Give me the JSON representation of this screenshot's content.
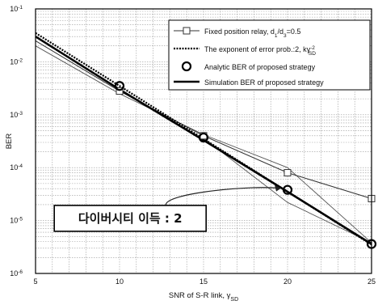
{
  "chart_data": {
    "type": "line",
    "title": "",
    "xlabel": "SNR of S-R link, γSD",
    "ylabel": "BER",
    "x_scale": "linear",
    "y_scale": "log",
    "xlim": [
      5,
      25
    ],
    "ylim": [
      1e-06,
      0.1
    ],
    "grid": true,
    "legend_position": "top-right",
    "x_ticks": [
      5,
      10,
      15,
      20,
      25
    ],
    "y_ticks": [
      {
        "value": 0.1,
        "base": "10",
        "exp": "-1"
      },
      {
        "value": 0.01,
        "base": "10",
        "exp": "-2"
      },
      {
        "value": 0.001,
        "base": "10",
        "exp": "-3"
      },
      {
        "value": 0.0001,
        "base": "10",
        "exp": "-4"
      },
      {
        "value": 1e-05,
        "base": "10",
        "exp": "-5"
      },
      {
        "value": 1e-06,
        "base": "10",
        "exp": "-6"
      }
    ],
    "series": [
      {
        "name": "Fixed position relay, d1/d3=0.5",
        "style": "thin-line-square-markers",
        "color": "#333333",
        "x": [
          5,
          10,
          15,
          20,
          25
        ],
        "y": [
          0.025,
          0.0028,
          0.0004,
          8e-05,
          2.6e-05
        ],
        "marker_x": [
          10,
          15,
          20,
          25
        ]
      },
      {
        "name": "The exponent of error prob.:2, kγSD^-2",
        "style": "dashed",
        "color": "#000000",
        "x": [
          5,
          25
        ],
        "y": [
          0.035,
          3.5e-06
        ]
      },
      {
        "name": "Analytic BER of proposed strategy",
        "style": "circle-markers",
        "color": "#000000",
        "x": [
          10,
          15,
          20,
          25
        ],
        "y": [
          0.0035,
          0.00037,
          3.8e-05,
          3.6e-06
        ]
      },
      {
        "name": "Simulation BER of proposed strategy",
        "style": "thick-line",
        "color": "#000000",
        "x": [
          5,
          10,
          15,
          20,
          25
        ],
        "y": [
          0.03,
          0.003,
          0.00033,
          3.5e-05,
          3.6e-06
        ]
      }
    ],
    "extra_curves": [
      {
        "x": [
          5,
          10,
          15,
          20,
          25
        ],
        "y": [
          0.02,
          0.0025,
          0.00042,
          0.0001,
          3.8e-06
        ]
      },
      {
        "x": [
          15,
          20,
          25
        ],
        "y": [
          0.00036,
          2.2e-05,
          3.8e-06
        ]
      }
    ],
    "legend": {
      "entries": [
        {
          "pre": "Fixed position relay, d",
          "sub1": "1",
          "mid": "/d",
          "sub2": "3",
          "post": "=0.5"
        },
        {
          "pre": "The exponent of error prob.:2, kγ",
          "sup": "-2",
          "sub": "SD"
        },
        {
          "text": "Analytic BER of proposed strategy"
        },
        {
          "text": "Simulation BER of proposed strategy"
        }
      ]
    },
    "xlabel_parts": {
      "main": "SNR of S-R link, γ",
      "sub": "SD"
    },
    "annotation": {
      "text": "다이버시티 이득 : 2",
      "x": 9,
      "y": 1.1e-05,
      "arrow_to_x": 20,
      "arrow_to_y": 3.8e-05
    }
  }
}
